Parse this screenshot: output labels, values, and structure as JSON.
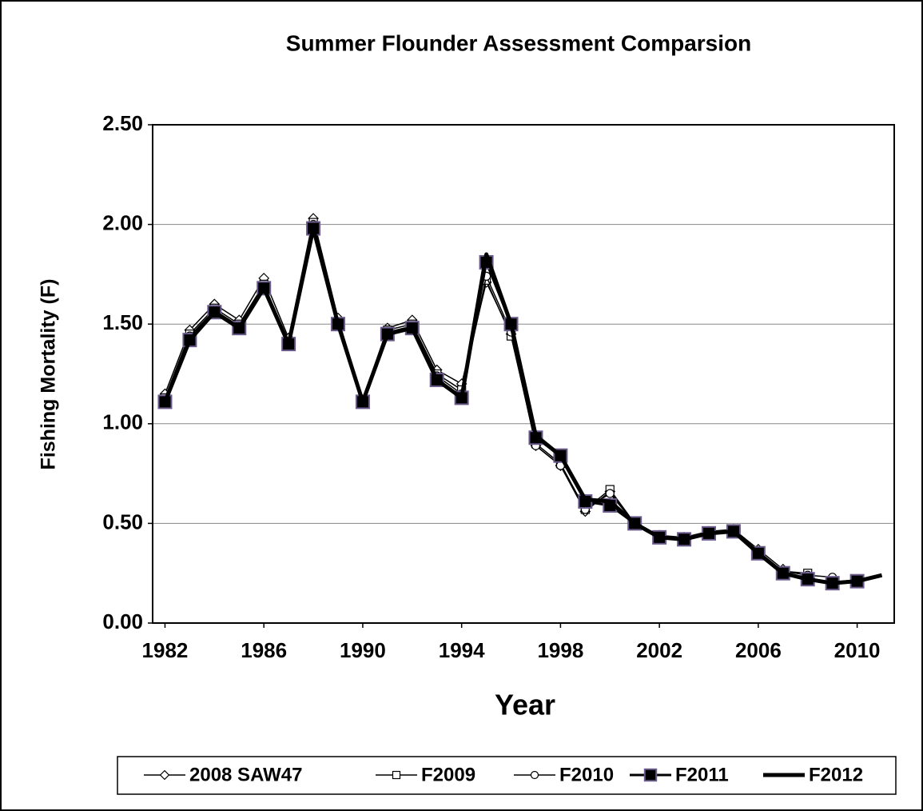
{
  "chart_data": {
    "type": "line",
    "title": "Summer Flounder Assessment Comparsion",
    "xlabel": "Year",
    "ylabel": "Fishing Mortality (F)",
    "x": [
      1982,
      1983,
      1984,
      1985,
      1986,
      1987,
      1988,
      1989,
      1990,
      1991,
      1992,
      1993,
      1994,
      1995,
      1996,
      1997,
      1998,
      1999,
      2000,
      2001,
      2002,
      2003,
      2004,
      2005,
      2006,
      2007,
      2008,
      2009,
      2010,
      2011
    ],
    "xlim": [
      1981.5,
      2011.5
    ],
    "xticks": [
      1982,
      1986,
      1990,
      1994,
      1998,
      2002,
      2006,
      2010
    ],
    "ylim": [
      0,
      2.5
    ],
    "yticks": [
      {
        "value": 0,
        "label": "0.00"
      },
      {
        "value": 0.5,
        "label": "0.50"
      },
      {
        "value": 1,
        "label": "1.00"
      },
      {
        "value": 1.5,
        "label": "1.50"
      },
      {
        "value": 2,
        "label": "2.00"
      },
      {
        "value": 2.5,
        "label": "2.50"
      }
    ],
    "grid": true,
    "legend": "bottom",
    "series": [
      {
        "name": "2008 SAW47",
        "color": "#000000",
        "marker": "diamond",
        "width": 1.5,
        "values": [
          1.15,
          1.47,
          1.6,
          1.52,
          1.73,
          1.43,
          2.03,
          1.53,
          1.12,
          1.48,
          1.52,
          1.27,
          1.2,
          1.71,
          1.45,
          0.89,
          0.79,
          0.56,
          0.66,
          0.5,
          0.44,
          0.43,
          0.46,
          0.47,
          0.37,
          0.27,
          null,
          null,
          null,
          null
        ]
      },
      {
        "name": "F2009",
        "color": "#000000",
        "marker": "square",
        "width": 1.5,
        "values": [
          1.13,
          1.45,
          1.58,
          1.5,
          1.7,
          1.41,
          2.01,
          1.51,
          1.11,
          1.47,
          1.5,
          1.25,
          1.17,
          1.72,
          1.44,
          0.9,
          0.8,
          0.57,
          0.67,
          0.5,
          0.44,
          0.42,
          0.46,
          0.46,
          0.36,
          0.26,
          0.25,
          null,
          null,
          null
        ]
      },
      {
        "name": "F2010",
        "color": "#000000",
        "marker": "circle",
        "width": 1.5,
        "values": [
          1.12,
          1.44,
          1.57,
          1.49,
          1.69,
          1.41,
          2.0,
          1.51,
          1.11,
          1.46,
          1.49,
          1.24,
          1.15,
          1.74,
          1.46,
          0.89,
          0.79,
          0.57,
          0.65,
          0.5,
          0.44,
          0.42,
          0.45,
          0.46,
          0.35,
          0.26,
          0.24,
          0.23,
          null,
          null
        ]
      },
      {
        "name": "F2011",
        "color": "#000000",
        "marker": "filled-square",
        "width": 3,
        "values": [
          1.11,
          1.42,
          1.56,
          1.48,
          1.68,
          1.4,
          1.98,
          1.5,
          1.11,
          1.45,
          1.48,
          1.22,
          1.13,
          1.81,
          1.5,
          0.93,
          0.84,
          0.61,
          0.59,
          0.5,
          0.43,
          0.42,
          0.45,
          0.46,
          0.35,
          0.25,
          0.22,
          0.2,
          0.21,
          null
        ]
      },
      {
        "name": "F2012",
        "color": "#000000",
        "marker": "none",
        "width": 5,
        "values": [
          1.11,
          1.42,
          1.56,
          1.48,
          1.68,
          1.4,
          1.98,
          1.5,
          1.11,
          1.45,
          1.48,
          1.22,
          1.13,
          1.85,
          1.5,
          0.94,
          0.84,
          0.62,
          0.61,
          0.5,
          0.43,
          0.42,
          0.45,
          0.46,
          0.35,
          0.25,
          0.22,
          0.2,
          0.21,
          0.24
        ]
      }
    ]
  }
}
